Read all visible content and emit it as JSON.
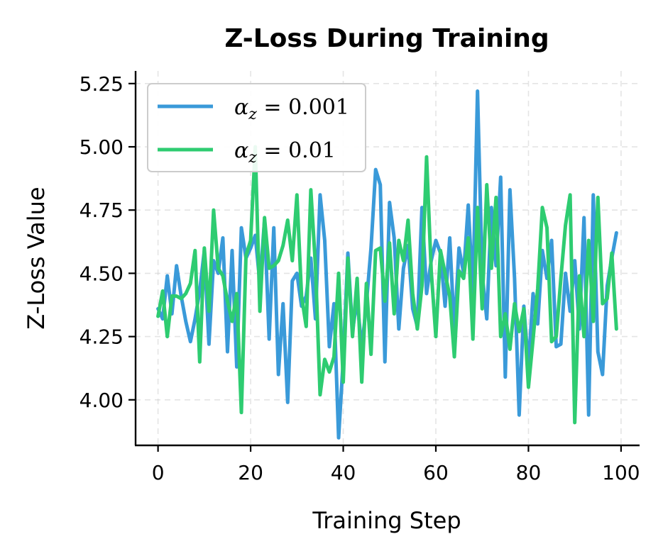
{
  "chart_data": {
    "type": "line",
    "title": "Z-Loss During Training",
    "xlabel": "Training Step",
    "ylabel": "Z-Loss Value",
    "xlim": [
      -5,
      104
    ],
    "ylim": [
      3.82,
      5.3
    ],
    "x_ticks": [
      0,
      20,
      40,
      60,
      80,
      100
    ],
    "x_tick_labels": [
      "0",
      "20",
      "40",
      "60",
      "80",
      "100"
    ],
    "y_ticks": [
      4.0,
      4.25,
      4.5,
      4.75,
      5.0,
      5.25
    ],
    "y_tick_labels": [
      "4.00",
      "4.25",
      "4.50",
      "4.75",
      "5.00",
      "5.25"
    ],
    "grid": true,
    "legend_position": "top-left",
    "x": [
      0,
      1,
      2,
      3,
      4,
      5,
      6,
      7,
      8,
      9,
      10,
      11,
      12,
      13,
      14,
      15,
      16,
      17,
      18,
      19,
      20,
      21,
      22,
      23,
      24,
      25,
      26,
      27,
      28,
      29,
      30,
      31,
      32,
      33,
      34,
      35,
      36,
      37,
      38,
      39,
      40,
      41,
      42,
      43,
      44,
      45,
      46,
      47,
      48,
      49,
      50,
      51,
      52,
      53,
      54,
      55,
      56,
      57,
      58,
      59,
      60,
      61,
      62,
      63,
      64,
      65,
      66,
      67,
      68,
      69,
      70,
      71,
      72,
      73,
      74,
      75,
      76,
      77,
      78,
      79,
      80,
      81,
      82,
      83,
      84,
      85,
      86,
      87,
      88,
      89,
      90,
      91,
      92,
      93,
      94,
      95,
      96,
      97,
      98,
      99
    ],
    "series": [
      {
        "name": "α_z = 0.001",
        "legend_symbol": "α",
        "legend_subscript": "z",
        "legend_value": " = 0.001",
        "color": "#3a9ad9",
        "values": [
          4.36,
          4.32,
          4.49,
          4.34,
          4.53,
          4.41,
          4.31,
          4.23,
          4.32,
          4.43,
          4.59,
          4.22,
          4.55,
          4.5,
          4.64,
          4.19,
          4.59,
          4.13,
          4.68,
          4.56,
          4.6,
          4.65,
          4.46,
          4.71,
          4.24,
          4.68,
          4.1,
          4.38,
          3.99,
          4.47,
          4.5,
          4.37,
          4.41,
          4.56,
          4.32,
          4.81,
          4.63,
          4.21,
          4.38,
          3.85,
          4.16,
          4.58,
          4.27,
          4.4,
          4.2,
          4.38,
          4.6,
          4.91,
          4.85,
          4.15,
          4.78,
          4.64,
          4.28,
          4.52,
          4.61,
          4.36,
          4.29,
          4.76,
          4.42,
          4.55,
          4.63,
          4.58,
          4.37,
          4.64,
          4.27,
          4.6,
          4.5,
          4.77,
          4.42,
          5.22,
          4.5,
          4.32,
          4.76,
          4.53,
          4.88,
          4.09,
          4.83,
          4.48,
          3.94,
          4.37,
          4.13,
          4.42,
          4.3,
          4.59,
          4.48,
          4.63,
          4.21,
          4.22,
          4.5,
          4.35,
          4.55,
          4.28,
          4.72,
          3.94,
          4.81,
          4.19,
          4.1,
          4.45,
          4.56,
          4.66
        ]
      },
      {
        "name": "α_z = 0.01",
        "legend_symbol": "α",
        "legend_subscript": "z",
        "legend_value": " = 0.01",
        "color": "#2ecc71",
        "values": [
          4.33,
          4.43,
          4.25,
          4.41,
          4.41,
          4.4,
          4.42,
          4.46,
          4.59,
          4.15,
          4.6,
          4.35,
          4.75,
          4.52,
          4.49,
          4.39,
          4.31,
          4.42,
          3.95,
          4.57,
          4.63,
          5.0,
          4.35,
          4.72,
          4.52,
          4.53,
          4.55,
          4.61,
          4.71,
          4.55,
          4.81,
          4.41,
          4.29,
          4.83,
          4.53,
          4.02,
          4.16,
          4.11,
          4.17,
          4.5,
          4.07,
          4.56,
          4.25,
          4.48,
          4.07,
          4.46,
          4.18,
          4.59,
          4.6,
          4.39,
          4.62,
          4.34,
          4.63,
          4.55,
          4.71,
          4.42,
          4.28,
          4.45,
          4.96,
          4.51,
          4.25,
          4.59,
          4.5,
          4.41,
          4.17,
          4.51,
          4.48,
          4.64,
          4.24,
          4.76,
          4.36,
          4.85,
          4.52,
          4.8,
          4.25,
          4.34,
          4.2,
          4.38,
          4.27,
          4.36,
          4.05,
          4.24,
          4.44,
          4.76,
          4.68,
          4.23,
          4.25,
          4.48,
          4.69,
          4.81,
          3.91,
          4.49,
          4.25,
          4.63,
          4.31,
          4.8,
          4.38,
          4.4,
          4.58,
          4.28
        ]
      }
    ]
  }
}
